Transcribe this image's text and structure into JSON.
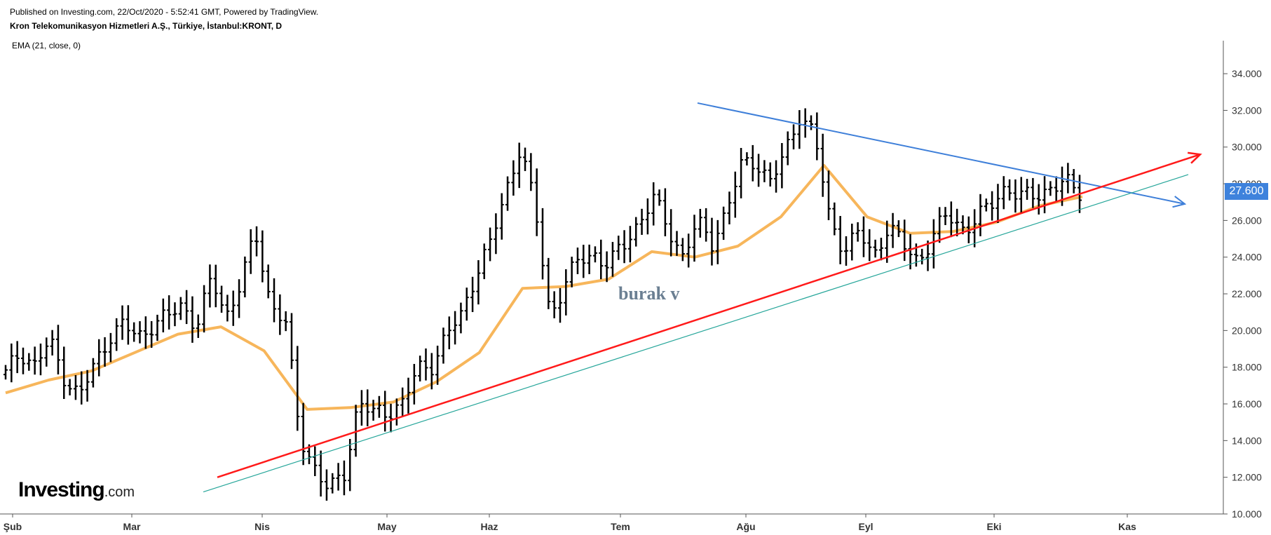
{
  "header": {
    "published": "Published on Investing.com, 22/Oct/2020 - 5:52:41 GMT, Powered by TradingView.",
    "symbol": "Kron Telekomunikasyon Hizmetleri A.Ş., Türkiye, İstanbul:KRONT, D",
    "indicator": "EMA (21, close, 0)"
  },
  "watermark": "burak v",
  "logo": {
    "main": "Investing",
    "suffix": ".com"
  },
  "colors": {
    "bars": "#000000",
    "ema": "#f7b65b",
    "support_red": "#ff1a1a",
    "support_teal": "#26a69a",
    "resistance_blue": "#3e7fd9",
    "price_tag": "#3e82dc"
  },
  "chart_data": {
    "type": "ohlc",
    "y_axis": {
      "min": 10,
      "max": 35.8,
      "ticks": [
        "10.000",
        "12.000",
        "14.000",
        "16.000",
        "18.000",
        "20.000",
        "22.000",
        "24.000",
        "26.000",
        "28.000",
        "30.000",
        "32.000",
        "34.000"
      ],
      "tick_values": [
        10,
        12,
        14,
        16,
        18,
        20,
        22,
        24,
        26,
        28,
        30,
        32,
        34
      ]
    },
    "x_axis": {
      "labels": [
        "Şub",
        "Mar",
        "Nis",
        "May",
        "Haz",
        "Tem",
        "Ağu",
        "Eyl",
        "Eki",
        "Kas"
      ]
    },
    "last_price": "27.600",
    "ema": {
      "label": "EMA (21, close, 0)",
      "values": [
        16.6,
        17.3,
        17.8,
        18.8,
        19.8,
        20.2,
        18.9,
        15.7,
        15.8,
        16.1,
        17.2,
        18.8,
        22.3,
        22.4,
        22.8,
        24.3,
        24.0,
        24.6,
        26.2,
        29.0,
        26.2,
        25.3,
        25.4,
        25.9,
        26.8,
        27.3
      ]
    },
    "ohlc_series": [
      17.6,
      18.9,
      18.1,
      19.4,
      17.5,
      16.4,
      18.0,
      19.7,
      20.3,
      19.6,
      20.4,
      20.7,
      21.4,
      20.3,
      22.8,
      20.8,
      22.7,
      25.2,
      21.5,
      20.6,
      14.2,
      12.6,
      11.2,
      12.2,
      16.2,
      15.4,
      15.6,
      16.1,
      17.8,
      18.2,
      19.8,
      20.8,
      23.3,
      24.8,
      27.5,
      30.2,
      26.5,
      20.8,
      22.6,
      23.8,
      24.2,
      23.6,
      24.6,
      25.9,
      27.2,
      25.6,
      24.1,
      25.8,
      24.8,
      26.6,
      28.9,
      29.3,
      28.1,
      29.6,
      31.9,
      30.6,
      26.0,
      24.5,
      25.3,
      24.0,
      25.8,
      24.6,
      23.8,
      25.1,
      26.3,
      25.6,
      26.0,
      26.9,
      27.9,
      27.2,
      27.4,
      27.8,
      28.0,
      27.6
    ],
    "trendlines": [
      {
        "name": "resistance",
        "from": [
          "Tem",
          32.4
        ],
        "to": [
          "Kas",
          26.9
        ]
      },
      {
        "name": "support",
        "from": [
          "Mar",
          12.0
        ],
        "to": [
          "Kas",
          29.6
        ]
      },
      {
        "name": "support-lower",
        "from": [
          "Mar",
          11.2
        ],
        "to": [
          "Kas",
          28.5
        ]
      }
    ]
  }
}
